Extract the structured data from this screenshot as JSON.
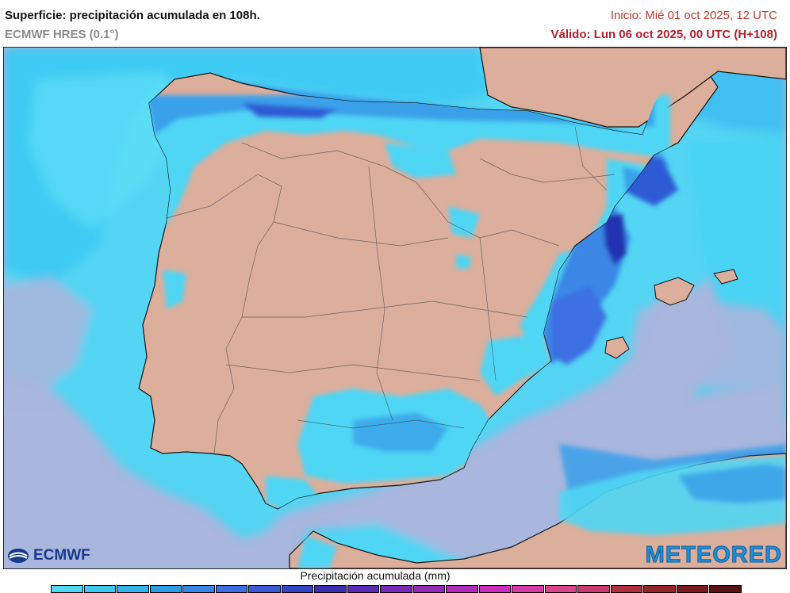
{
  "header": {
    "title": "Superficie: precipitación acumulada en 108h.",
    "model": "ECMWF HRES (0.1°)",
    "init": "Inicio: Mié 01 oct 2025, 12 UTC",
    "valid": "Válido: Lun 06 oct 2025, 00 UTC (H+108)"
  },
  "logos": {
    "ecmwf": "ECMWF",
    "meteored": "METEORED"
  },
  "legend": {
    "title": "Precipitación acumulada (mm)",
    "colors": [
      "#4fd9f5",
      "#3ccaf3",
      "#34b4f0",
      "#2d9de8",
      "#3a87e6",
      "#3e6fe2",
      "#3b5bd6",
      "#3347c6",
      "#3a2fb3",
      "#5b2bb5",
      "#7a2ab8",
      "#952ab9",
      "#b22cbd",
      "#cc2fbf",
      "#d83aa6",
      "#d9448a",
      "#c93a6e",
      "#b0303f",
      "#962429",
      "#7c1a1f",
      "#5a1214"
    ]
  },
  "map_colors": {
    "sea": "#a9b6dd",
    "land": "#dcae9c",
    "precip_light": "#4fd6f4",
    "precip_mid": "#3aa0ea",
    "precip_heavy": "#2f5ad6",
    "precip_max": "#2233b0"
  }
}
